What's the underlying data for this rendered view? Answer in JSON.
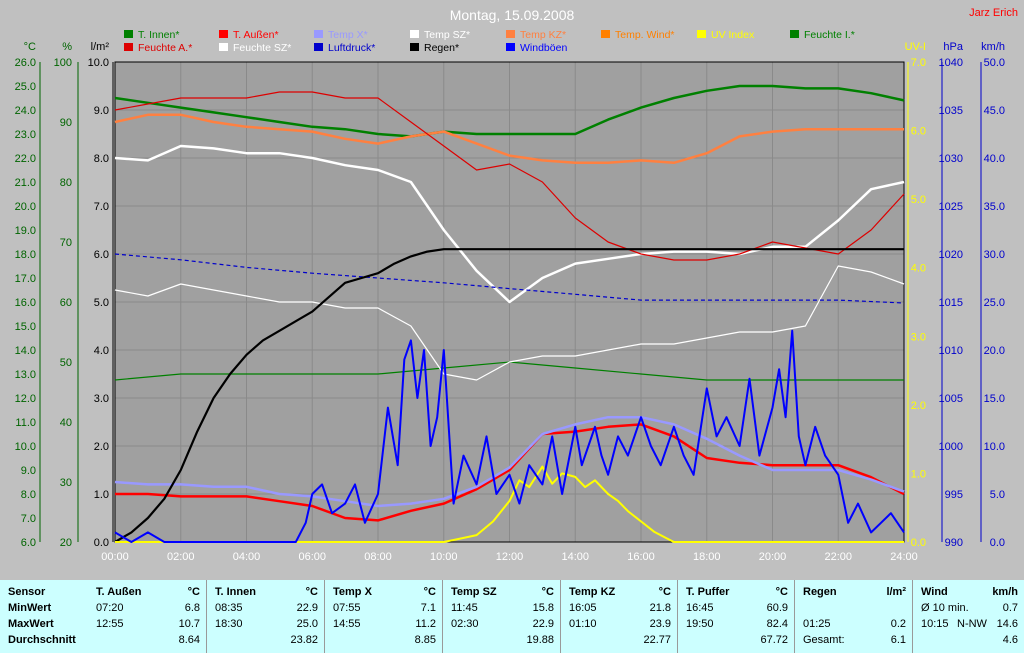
{
  "header": {
    "title": "Montag, 15.09.2008",
    "author": "Jarz Erich"
  },
  "colors": {
    "t_innen": "#008000",
    "t_aussen": "#ff0000",
    "temp_x": "#9999ff",
    "temp_sz": "#ffffff",
    "temp_kz": "#ff8040",
    "temp_wind": "#ff8000",
    "uv": "#ffff00",
    "feuchte_i": "#008000",
    "feuchte_a": "#dd0000",
    "feuchte_sz": "#ffffff",
    "luftdruck": "#0000cc",
    "regen": "#000000",
    "windboeen": "#0000ff",
    "plot_bg": "#a0a0a0",
    "frame_bg": "#c0c0c0"
  },
  "legend": [
    {
      "label": "T. Innen*",
      "color": "#008000"
    },
    {
      "label": "T. Außen*",
      "color": "#ff0000"
    },
    {
      "label": "Temp X*",
      "color": "#9999ff"
    },
    {
      "label": "Temp SZ*",
      "color": "#ffffff"
    },
    {
      "label": "Temp KZ*",
      "color": "#ff8040"
    },
    {
      "label": "Temp. Wind*",
      "color": "#ff8000"
    },
    {
      "label": "UV Index",
      "color": "#ffff00"
    },
    {
      "label": "Feuchte I.*",
      "color": "#008000"
    },
    {
      "label": "Feuchte A.*",
      "color": "#dd0000"
    },
    {
      "label": "Feuchte SZ*",
      "color": "#ffffff"
    },
    {
      "label": "Luftdruck*",
      "color": "#0000cc"
    },
    {
      "label": "Regen*",
      "color": "#000000"
    },
    {
      "label": "Windböen",
      "color": "#0000ff"
    }
  ],
  "chart_data": {
    "type": "line",
    "title": "Montag, 15.09.2008",
    "x_unit": "hours",
    "xlim": [
      0,
      24
    ],
    "x_ticks": [
      "00:00",
      "02:00",
      "04:00",
      "06:00",
      "08:00",
      "10:00",
      "12:00",
      "14:00",
      "16:00",
      "18:00",
      "20:00",
      "22:00",
      "24:00"
    ],
    "axes": {
      "temp": {
        "unit": "°C",
        "range": [
          6.0,
          26.0
        ],
        "ticks": [
          "6.0",
          "7.0",
          "8.0",
          "9.0",
          "10.0",
          "11.0",
          "12.0",
          "13.0",
          "14.0",
          "15.0",
          "16.0",
          "17.0",
          "18.0",
          "19.0",
          "20.0",
          "21.0",
          "22.0",
          "23.0",
          "24.0",
          "25.0",
          "26.0"
        ]
      },
      "humidity": {
        "unit": "%",
        "range": [
          20,
          100
        ],
        "ticks": [
          "20",
          "30",
          "40",
          "50",
          "60",
          "70",
          "80",
          "90",
          "100"
        ]
      },
      "rain": {
        "unit": "l/m²",
        "range": [
          0.0,
          10.0
        ],
        "ticks": [
          "0.0",
          "1.0",
          "2.0",
          "3.0",
          "4.0",
          "5.0",
          "6.0",
          "7.0",
          "8.0",
          "9.0",
          "10.0"
        ]
      },
      "uv": {
        "unit": "UV-I",
        "range": [
          0.0,
          7.0
        ],
        "ticks": [
          "0.0",
          "1.0",
          "2.0",
          "3.0",
          "4.0",
          "5.0",
          "6.0",
          "7.0"
        ]
      },
      "pressure": {
        "unit": "hPa",
        "range": [
          990,
          1040
        ],
        "ticks": [
          "990",
          "995",
          "1000",
          "1005",
          "1010",
          "1015",
          "1020",
          "1025",
          "1030",
          "1035",
          "1040"
        ]
      },
      "wind": {
        "unit": "km/h",
        "range": [
          0.0,
          50.0
        ],
        "ticks": [
          "0.0",
          "5.0",
          "10.0",
          "15.0",
          "20.0",
          "25.0",
          "30.0",
          "35.0",
          "40.0",
          "45.0",
          "50.0"
        ]
      }
    },
    "series": [
      {
        "name": "T. Innen*",
        "axis": "temp",
        "color": "#008000",
        "width": 2.5,
        "x": [
          0,
          1,
          2,
          3,
          4,
          5,
          6,
          7,
          8,
          9,
          10,
          11,
          12,
          13,
          14,
          15,
          16,
          17,
          18,
          19,
          20,
          21,
          22,
          23,
          24
        ],
        "y": [
          24.5,
          24.3,
          24.1,
          23.9,
          23.7,
          23.5,
          23.3,
          23.2,
          23.0,
          22.9,
          23.1,
          23.0,
          23.0,
          23.0,
          23.0,
          23.6,
          24.1,
          24.5,
          24.8,
          25.0,
          25.0,
          24.9,
          24.9,
          24.7,
          24.4
        ]
      },
      {
        "name": "T. Außen*",
        "axis": "temp",
        "color": "#ff0000",
        "width": 2.5,
        "x": [
          0,
          1,
          2,
          3,
          4,
          5,
          6,
          7,
          8,
          9,
          10,
          11,
          12,
          13,
          14,
          15,
          16,
          17,
          18,
          19,
          20,
          21,
          22,
          23,
          24
        ],
        "y": [
          8.0,
          8.0,
          7.9,
          7.9,
          7.9,
          7.7,
          7.5,
          7.0,
          6.9,
          7.3,
          7.6,
          8.2,
          9.0,
          10.5,
          10.6,
          10.8,
          10.9,
          10.4,
          9.5,
          9.3,
          9.2,
          9.2,
          9.2,
          8.7,
          8.0
        ]
      },
      {
        "name": "Temp X*",
        "axis": "temp",
        "color": "#9999ff",
        "width": 2.5,
        "x": [
          0,
          1,
          2,
          3,
          4,
          5,
          6,
          7,
          8,
          9,
          10,
          11,
          12,
          13,
          14,
          15,
          16,
          17,
          18,
          19,
          20,
          21,
          22,
          23,
          24
        ],
        "y": [
          8.5,
          8.4,
          8.4,
          8.3,
          8.3,
          8.0,
          7.9,
          7.7,
          7.5,
          7.6,
          7.8,
          8.3,
          9.1,
          10.5,
          10.9,
          11.2,
          11.2,
          10.9,
          10.3,
          9.6,
          9.0,
          9.0,
          9.0,
          8.6,
          8.1
        ]
      },
      {
        "name": "Temp KZ*",
        "axis": "temp",
        "color": "#ff8040",
        "width": 2.5,
        "x": [
          0,
          1,
          2,
          3,
          4,
          5,
          6,
          7,
          8,
          9,
          10,
          11,
          12,
          13,
          14,
          15,
          16,
          17,
          18,
          19,
          20,
          21,
          22,
          23,
          24
        ],
        "y": [
          23.5,
          23.8,
          23.8,
          23.5,
          23.3,
          23.2,
          23.1,
          22.8,
          22.6,
          22.9,
          23.1,
          22.6,
          22.1,
          21.9,
          21.8,
          21.8,
          21.9,
          21.8,
          22.2,
          22.9,
          23.1,
          23.2,
          23.2,
          23.2,
          23.2
        ]
      },
      {
        "name": "Temp SZ*",
        "axis": "temp",
        "color": "#ffffff",
        "width": 2.5,
        "x": [
          0,
          1,
          2,
          3,
          4,
          5,
          6,
          7,
          8,
          9,
          10,
          11,
          12,
          13,
          14,
          15,
          16,
          17,
          18,
          19,
          20,
          21,
          22,
          23,
          24
        ],
        "y": [
          22.0,
          21.9,
          22.5,
          22.4,
          22.2,
          22.2,
          22.0,
          21.7,
          21.5,
          21.0,
          19.0,
          17.3,
          16.0,
          17.0,
          17.6,
          17.8,
          18.0,
          18.1,
          18.1,
          18.0,
          18.3,
          18.3,
          19.4,
          20.7,
          21.0
        ]
      },
      {
        "name": "Feuchte I.*",
        "axis": "humidity",
        "color": "#008000",
        "width": 1.2,
        "x": [
          0,
          2,
          4,
          6,
          8,
          10,
          12,
          14,
          16,
          18,
          20,
          22,
          24
        ],
        "y": [
          47,
          48,
          48,
          48,
          48,
          49,
          50,
          49,
          48,
          47,
          47,
          47,
          47
        ]
      },
      {
        "name": "Feuchte A.*",
        "axis": "humidity",
        "color": "#dd0000",
        "width": 1.2,
        "x": [
          0,
          1,
          2,
          3,
          4,
          5,
          6,
          7,
          8,
          9,
          10,
          11,
          12,
          13,
          14,
          15,
          16,
          17,
          18,
          19,
          20,
          21,
          22,
          23,
          24
        ],
        "y": [
          92,
          93,
          94,
          94,
          94,
          95,
          95,
          94,
          94,
          90,
          86,
          82,
          83,
          80,
          74,
          70,
          68,
          67,
          67,
          68,
          70,
          69,
          68,
          72,
          78
        ]
      },
      {
        "name": "Feuchte SZ*",
        "axis": "humidity",
        "color": "#ffffff",
        "width": 1.2,
        "x": [
          0,
          1,
          2,
          3,
          4,
          5,
          6,
          7,
          8,
          9,
          10,
          11,
          12,
          13,
          14,
          15,
          16,
          17,
          18,
          19,
          20,
          21,
          22,
          23,
          24
        ],
        "y": [
          62,
          61,
          63,
          62,
          61,
          60,
          60,
          59,
          59,
          56,
          48,
          47,
          50,
          51,
          51,
          52,
          53,
          53,
          54,
          55,
          55,
          56,
          66,
          65,
          63
        ]
      },
      {
        "name": "Luftdruck*",
        "axis": "pressure",
        "color": "#0000cc",
        "width": 1.2,
        "dashed": true,
        "x": [
          0,
          2,
          4,
          6,
          8,
          10,
          12,
          14,
          16,
          18,
          20,
          22,
          24
        ],
        "y": [
          1020.0,
          1019.4,
          1018.6,
          1018.0,
          1017.5,
          1017.0,
          1016.4,
          1015.8,
          1015.2,
          1015.2,
          1015.2,
          1015.2,
          1014.9
        ]
      },
      {
        "name": "Regen*",
        "axis": "rain",
        "color": "#000000",
        "width": 2.2,
        "x": [
          0,
          0.5,
          1,
          1.5,
          2,
          2.5,
          3,
          3.5,
          4,
          4.5,
          5,
          5.5,
          6,
          6.5,
          7,
          7.5,
          8,
          8.5,
          9,
          9.5,
          10,
          11,
          12,
          13,
          14,
          15,
          16,
          17,
          18,
          19,
          20,
          21,
          22,
          23,
          24
        ],
        "y": [
          0.0,
          0.2,
          0.5,
          0.9,
          1.5,
          2.3,
          3.0,
          3.5,
          3.9,
          4.2,
          4.4,
          4.6,
          4.8,
          5.1,
          5.4,
          5.5,
          5.6,
          5.8,
          5.95,
          6.05,
          6.1,
          6.1,
          6.1,
          6.1,
          6.1,
          6.1,
          6.1,
          6.1,
          6.1,
          6.1,
          6.1,
          6.1,
          6.1,
          6.1,
          6.1
        ]
      },
      {
        "name": "UV Index",
        "axis": "uv",
        "color": "#ffff00",
        "width": 2,
        "x": [
          0,
          10,
          10.5,
          11,
          11.5,
          12,
          12.3,
          12.6,
          13,
          13.3,
          13.6,
          14,
          14.3,
          14.6,
          15,
          15.3,
          15.6,
          16,
          16.4,
          16.8,
          17,
          24
        ],
        "y": [
          0.0,
          0.0,
          0.05,
          0.1,
          0.3,
          0.6,
          0.9,
          0.8,
          1.1,
          0.85,
          1.0,
          0.95,
          0.8,
          0.9,
          0.7,
          0.6,
          0.45,
          0.3,
          0.15,
          0.05,
          0.0,
          0.0
        ]
      },
      {
        "name": "Windböen",
        "axis": "wind",
        "color": "#0000ff",
        "width": 2,
        "x": [
          0,
          0.5,
          1,
          1.5,
          2,
          2.5,
          3,
          3.5,
          4,
          4.5,
          5,
          5.5,
          5.8,
          6,
          6.3,
          6.6,
          7,
          7.3,
          7.6,
          8,
          8.3,
          8.6,
          8.8,
          9,
          9.2,
          9.4,
          9.6,
          9.8,
          10,
          10.3,
          10.6,
          11,
          11.3,
          11.6,
          12,
          12.3,
          12.6,
          13,
          13.3,
          13.6,
          14,
          14.2,
          14.4,
          14.6,
          14.8,
          15,
          15.3,
          15.6,
          16,
          16.3,
          16.6,
          17,
          17.3,
          17.6,
          18,
          18.3,
          18.6,
          19,
          19.3,
          19.6,
          20,
          20.2,
          20.4,
          20.6,
          20.8,
          21,
          21.3,
          21.6,
          22,
          22.3,
          22.6,
          23,
          23.3,
          23.6,
          24
        ],
        "y": [
          1,
          0,
          1,
          0,
          0,
          0,
          0,
          0,
          0,
          0,
          0,
          0,
          2,
          5,
          6,
          3,
          4,
          6,
          2,
          5,
          14,
          8,
          19,
          21,
          15,
          20,
          10,
          13,
          20,
          4,
          9,
          6,
          11,
          5,
          7,
          4,
          8,
          6,
          11,
          5,
          12,
          8,
          10,
          12,
          9,
          7,
          11,
          9,
          13,
          10,
          8,
          12,
          9,
          7,
          16,
          11,
          13,
          10,
          17,
          9,
          14,
          18,
          13,
          22,
          11,
          8,
          12,
          9,
          7,
          2,
          4,
          1,
          2,
          3,
          1
        ]
      }
    ]
  },
  "stats": {
    "sensor_label": "Sensor",
    "row_labels": [
      "MinWert",
      "MaxWert",
      "Durchschnitt"
    ],
    "columns": [
      {
        "title": "T. Außen",
        "unit": "°C",
        "min_time": "07:20",
        "min": "6.8",
        "max_time": "12:55",
        "max": "10.7",
        "avg": "8.64"
      },
      {
        "title": "T. Innen",
        "unit": "°C",
        "min_time": "08:35",
        "min": "22.9",
        "max_time": "18:30",
        "max": "25.0",
        "avg": "23.82"
      },
      {
        "title": "Temp X",
        "unit": "°C",
        "min_time": "07:55",
        "min": "7.1",
        "max_time": "14:55",
        "max": "11.2",
        "avg": "8.85"
      },
      {
        "title": "Temp SZ",
        "unit": "°C",
        "min_time": "11:45",
        "min": "15.8",
        "max_time": "02:30",
        "max": "22.9",
        "avg": "19.88"
      },
      {
        "title": "Temp KZ",
        "unit": "°C",
        "min_time": "16:05",
        "min": "21.8",
        "max_time": "01:10",
        "max": "23.9",
        "avg": "22.77"
      },
      {
        "title": "T. Puffer",
        "unit": "°C",
        "min_time": "16:45",
        "min": "60.9",
        "max_time": "19:50",
        "max": "82.4",
        "avg": "67.72"
      }
    ],
    "rain": {
      "title": "Regen",
      "unit": "l/m²",
      "max_time": "01:25",
      "max": "0.2",
      "avg_label": "Gesamt:",
      "avg": "6.1"
    },
    "wind": {
      "title": "Wind",
      "unit": "km/h",
      "min_label": "Ø 10 min.",
      "min": "0.7",
      "max_time": "10:15",
      "max_dir": "N-NW",
      "max": "14.6",
      "avg": "4.6"
    }
  }
}
